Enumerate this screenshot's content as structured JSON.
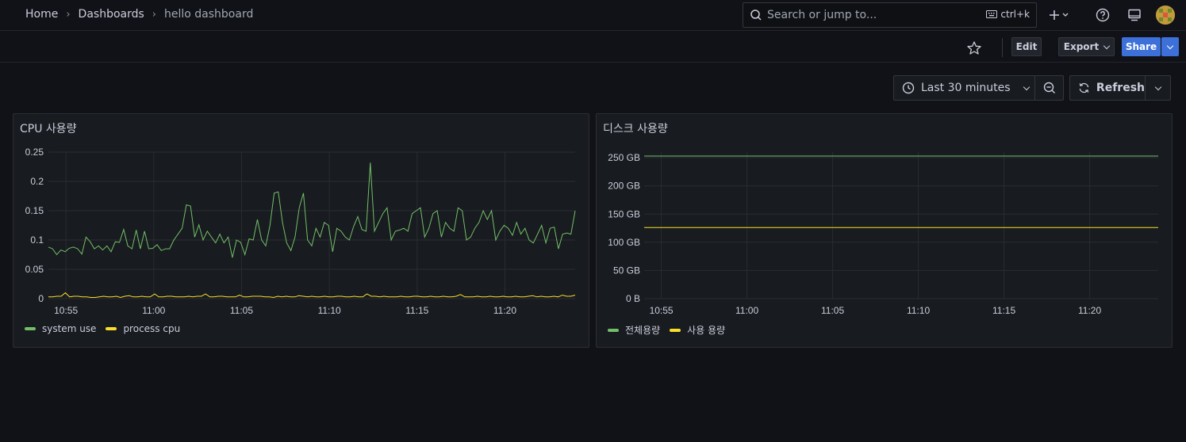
{
  "breadcrumb": [
    "Home",
    "Dashboards",
    "hello dashboard"
  ],
  "search": {
    "placeholder": "Search or jump to...",
    "shortcut": "ctrl+k"
  },
  "toolbar": {
    "edit": "Edit",
    "export": "Export",
    "share": "Share"
  },
  "timepicker": {
    "range": "Last 30 minutes",
    "refresh": "Refresh"
  },
  "colors": {
    "accent": "#3d71d9",
    "green": "#73bf69",
    "yellow": "#fade2a"
  },
  "panels": [
    {
      "title": "CPU 사용량",
      "legend": [
        {
          "name": "system use",
          "color": "#73bf69"
        },
        {
          "name": "process cpu",
          "color": "#fade2a"
        }
      ]
    },
    {
      "title": "디스크 사용량",
      "legend": [
        {
          "name": "전체용량",
          "color": "#73bf69"
        },
        {
          "name": "사용 용량",
          "color": "#fade2a"
        }
      ]
    }
  ],
  "chart_data": [
    {
      "type": "line",
      "title": "CPU 사용량",
      "x_ticks": [
        "10:55",
        "11:00",
        "11:05",
        "11:10",
        "11:15",
        "11:20"
      ],
      "x_range": [
        "10:54",
        "11:24"
      ],
      "y_ticks": [
        "0",
        "0.05",
        "0.1",
        "0.15",
        "0.2",
        "0.25"
      ],
      "ylim": [
        0,
        0.25
      ],
      "grid": true,
      "legend_position": "bottom-left",
      "series": [
        {
          "name": "system use",
          "color": "#73bf69",
          "values": [
            0.088,
            0.085,
            0.075,
            0.083,
            0.08,
            0.086,
            0.088,
            0.085,
            0.076,
            0.105,
            0.097,
            0.085,
            0.09,
            0.083,
            0.09,
            0.08,
            0.097,
            0.096,
            0.118,
            0.09,
            0.085,
            0.117,
            0.085,
            0.115,
            0.085,
            0.086,
            0.092,
            0.082,
            0.085,
            0.085,
            0.1,
            0.11,
            0.12,
            0.16,
            0.158,
            0.105,
            0.126,
            0.1,
            0.115,
            0.105,
            0.095,
            0.11,
            0.095,
            0.105,
            0.07,
            0.1,
            0.096,
            0.075,
            0.102,
            0.1,
            0.135,
            0.1,
            0.09,
            0.125,
            0.18,
            0.182,
            0.13,
            0.095,
            0.082,
            0.105,
            0.155,
            0.18,
            0.1,
            0.09,
            0.12,
            0.105,
            0.13,
            0.125,
            0.08,
            0.12,
            0.115,
            0.105,
            0.1,
            0.123,
            0.14,
            0.118,
            0.115,
            0.232,
            0.115,
            0.13,
            0.145,
            0.155,
            0.1,
            0.115,
            0.117,
            0.12,
            0.115,
            0.145,
            0.15,
            0.155,
            0.105,
            0.12,
            0.145,
            0.15,
            0.105,
            0.13,
            0.12,
            0.115,
            0.155,
            0.15,
            0.1,
            0.105,
            0.12,
            0.13,
            0.15,
            0.135,
            0.15,
            0.1,
            0.115,
            0.125,
            0.12,
            0.108,
            0.13,
            0.11,
            0.12,
            0.1,
            0.095,
            0.11,
            0.125,
            0.095,
            0.12,
            0.122,
            0.085,
            0.11,
            0.112,
            0.11,
            0.15
          ]
        },
        {
          "name": "process cpu",
          "color": "#fade2a",
          "values": [
            0.003,
            0.003,
            0.004,
            0.004,
            0.01,
            0.003,
            0.004,
            0.004,
            0.003,
            0.003,
            0.002,
            0.002,
            0.003,
            0.004,
            0.003,
            0.003,
            0.004,
            0.002,
            0.004,
            0.005,
            0.003,
            0.003,
            0.004,
            0.003,
            0.003,
            0.008,
            0.003,
            0.003,
            0.004,
            0.004,
            0.003,
            0.003,
            0.003,
            0.004,
            0.003,
            0.004,
            0.004,
            0.008,
            0.003,
            0.003,
            0.004,
            0.004,
            0.003,
            0.003,
            0.003,
            0.006,
            0.003,
            0.003,
            0.004,
            0.004,
            0.004,
            0.003,
            0.003,
            0.002,
            0.004,
            0.003,
            0.004,
            0.003,
            0.003,
            0.005,
            0.004,
            0.003,
            0.004,
            0.003,
            0.003,
            0.004,
            0.003,
            0.003,
            0.004,
            0.004,
            0.003,
            0.003,
            0.004,
            0.003,
            0.003,
            0.008,
            0.004,
            0.004,
            0.003,
            0.004,
            0.003,
            0.003,
            0.003,
            0.004,
            0.003,
            0.003,
            0.004,
            0.004,
            0.003,
            0.003,
            0.004,
            0.003,
            0.003,
            0.004,
            0.003,
            0.003,
            0.004,
            0.007,
            0.003,
            0.003,
            0.003,
            0.004,
            0.003,
            0.003,
            0.004,
            0.003,
            0.003,
            0.004,
            0.003,
            0.003,
            0.004,
            0.003,
            0.003,
            0.004,
            0.005,
            0.003,
            0.004,
            0.003,
            0.003,
            0.004,
            0.003,
            0.006,
            0.004,
            0.004,
            0.006
          ]
        }
      ]
    },
    {
      "type": "line",
      "title": "디스크 사용량",
      "x_ticks": [
        "10:55",
        "11:00",
        "11:05",
        "11:10",
        "11:15",
        "11:20"
      ],
      "x_range": [
        "10:54",
        "11:24"
      ],
      "y_ticks": [
        "0 B",
        "50 GB",
        "100 GB",
        "150 GB",
        "200 GB",
        "250 GB"
      ],
      "ylim": [
        0,
        260
      ],
      "grid": true,
      "legend_position": "bottom-left",
      "series": [
        {
          "name": "전체용량",
          "color": "#73bf69",
          "values": [
            253,
            253
          ]
        },
        {
          "name": "사용 용량",
          "color": "#fade2a",
          "values": [
            126,
            126
          ]
        }
      ]
    }
  ]
}
